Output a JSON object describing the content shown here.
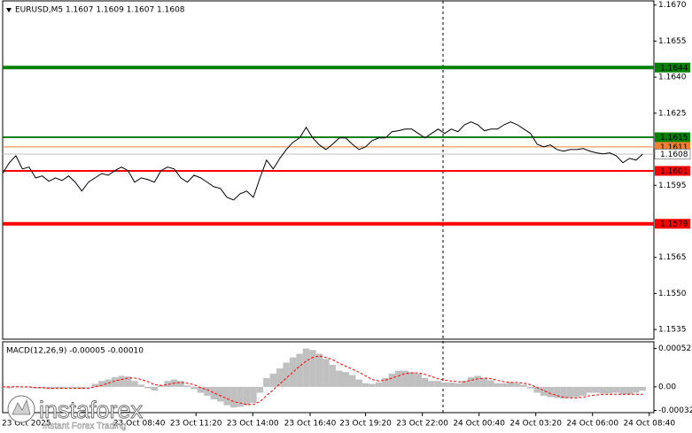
{
  "chart_data": [
    {
      "type": "line",
      "title": "EURUSD,M5  1.1607 1.1609 1.1607 1.1608",
      "color": "#000000",
      "values": [
        1.16,
        1.16044,
        1.16073,
        1.16018,
        1.16026,
        1.15981,
        1.15989,
        1.15967,
        1.15981,
        1.1597,
        1.15989,
        1.15963,
        1.15926,
        1.15963,
        1.15981,
        1.15999,
        1.15992,
        1.16011,
        1.16026,
        1.16011,
        1.15963,
        1.15981,
        1.15974,
        1.15963,
        1.16011,
        1.16026,
        1.16018,
        1.15981,
        1.15963,
        1.15992,
        1.15981,
        1.15963,
        1.15944,
        1.15937,
        1.159,
        1.15889,
        1.15915,
        1.15926,
        1.159,
        1.15981,
        1.16055,
        1.16018,
        1.16062,
        1.16099,
        1.16129,
        1.16147,
        1.16191,
        1.16147,
        1.16118,
        1.16099,
        1.16121,
        1.16147,
        1.16147,
        1.16121,
        1.16099,
        1.1611,
        1.16136,
        1.16147,
        1.16147,
        1.16173,
        1.16177,
        1.16184,
        1.16184,
        1.16166,
        1.16147,
        1.16166,
        1.16184,
        1.16166,
        1.16184,
        1.16173,
        1.16202,
        1.16214,
        1.16202,
        1.16177,
        1.16184,
        1.16184,
        1.16202,
        1.16214,
        1.16202,
        1.16184,
        1.16166,
        1.16121,
        1.1611,
        1.16118,
        1.16099,
        1.16092,
        1.16099,
        1.16099,
        1.16103,
        1.16092,
        1.16085,
        1.16081,
        1.16085,
        1.16073,
        1.16044,
        1.16062,
        1.16055,
        1.1608
      ],
      "xlim": [
        0,
        98.7
      ],
      "xticks": [
        {
          "value": 3.6,
          "label": "23 Oct 2025"
        },
        {
          "value": 20.7,
          "label": "23 Oct 08:40"
        },
        {
          "value": 29.3,
          "label": "23 Oct 11:20"
        },
        {
          "value": 37.9,
          "label": "23 Oct 14:00"
        },
        {
          "value": 46.6,
          "label": "23 Oct 16:40"
        },
        {
          "value": 55,
          "label": "23 Oct 19:20"
        },
        {
          "value": 63.6,
          "label": "23 Oct 22:00"
        },
        {
          "value": 72.2,
          "label": "24 Oct 00:40"
        },
        {
          "value": 80.8,
          "label": "24 Oct 03:20"
        },
        {
          "value": 89.4,
          "label": "24 Oct 06:00"
        },
        {
          "value": 98,
          "label": "24 Oct 08:40"
        }
      ],
      "ylim": [
        1.1531,
        1.1671
      ],
      "yticks": [
        {
          "value": 1.167,
          "label": "1.1670"
        },
        {
          "value": 1.1655,
          "label": "1.1655"
        },
        {
          "value": 1.164,
          "label": "1.1640"
        },
        {
          "value": 1.1625,
          "label": "1.1625"
        },
        {
          "value": 1.1595,
          "label": "1.1595"
        },
        {
          "value": 1.1565,
          "label": "1.1565"
        },
        {
          "value": 1.155,
          "label": "1.1550"
        },
        {
          "value": 1.1535,
          "label": "1.1535"
        }
      ],
      "levels": [
        {
          "value": 1.1644,
          "color": "#008000",
          "style": "thick"
        },
        {
          "value": 1.1615,
          "color": "#008000",
          "style": "medium"
        },
        {
          "value": 1.1611,
          "color": "#f08030",
          "style": "thin"
        },
        {
          "value": 1.1608,
          "color": "#c0c0c0",
          "style": "thin",
          "label_background": "#ffffff",
          "label_color": "#000000"
        },
        {
          "value": 1.1601,
          "color": "#ff0000",
          "style": "medium"
        },
        {
          "value": 1.1579,
          "color": "#ff0000",
          "style": "thick"
        }
      ]
    },
    {
      "type": "macd",
      "title": "MACD(12,26,9) -0.00005 -0.00010",
      "series": [
        {
          "style": "histogram",
          "color": "#c0c0c0",
          "values": [
            0,
            -2e-05,
            1e-05,
            0,
            -1e-05,
            -2e-05,
            -2e-05,
            -3e-05,
            -2e-05,
            -2e-05,
            -1e-05,
            -2e-05,
            -3e-05,
            -1e-05,
            4e-05,
            8e-05,
            0.0001,
            0.00013,
            0.00015,
            0.00014,
            8e-05,
            3e-05,
            -2e-05,
            -5e-05,
            2e-05,
            8e-05,
            0.0001,
            8e-05,
            2e-05,
            -3e-05,
            -8e-05,
            -0.00012,
            -0.00017,
            -0.0002,
            -0.00025,
            -0.00028,
            -0.00027,
            -0.00025,
            -0.00022,
            -8e-05,
            0.00012,
            0.00018,
            0.00025,
            0.00033,
            0.0004,
            0.00045,
            0.00052,
            0.0005,
            0.00045,
            0.00038,
            0.0003,
            0.00022,
            0.0002,
            0.00016,
            0.0001,
            5e-05,
            4e-05,
            6e-05,
            0.00012,
            0.00018,
            0.00022,
            0.00022,
            0.0002,
            0.00018,
            0.00012,
            8e-05,
            8e-05,
            6e-05,
            6e-05,
            5e-05,
            8e-05,
            0.00013,
            0.00015,
            0.00012,
            9e-05,
            5e-05,
            5e-05,
            6e-05,
            5e-05,
            3e-05,
            -2e-05,
            -8e-05,
            -0.00012,
            -0.00014,
            -0.00015,
            -0.00016,
            -0.00015,
            -0.00014,
            -0.00012,
            -8e-05,
            -8e-05,
            -9e-05,
            -9e-05,
            -8e-05,
            -0.0001,
            -0.0001,
            -8e-05,
            -5e-05
          ]
        },
        {
          "style": "dashed",
          "color": "#ff0000",
          "values": [
            0,
            0,
            0,
            0,
            0,
            -1e-05,
            -1e-05,
            -2e-05,
            -2e-05,
            -2e-05,
            -2e-05,
            -2e-05,
            -2e-05,
            -2e-05,
            0,
            2e-05,
            5e-05,
            8e-05,
            0.0001,
            0.00012,
            0.00012,
            0.0001,
            7e-05,
            3e-05,
            2e-05,
            3e-05,
            5e-05,
            6e-05,
            5e-05,
            3e-05,
            -1e-05,
            -4e-05,
            -8e-05,
            -0.00012,
            -0.00016,
            -0.0002,
            -0.00022,
            -0.00024,
            -0.00024,
            -0.0002,
            -0.00012,
            -4e-05,
            4e-05,
            0.00012,
            0.0002,
            0.00028,
            0.00035,
            0.0004,
            0.00042,
            0.0004,
            0.00037,
            0.00032,
            0.00028,
            0.00024,
            0.0002,
            0.00015,
            0.0001,
            8e-05,
            9e-05,
            0.00012,
            0.00015,
            0.00018,
            0.00019,
            0.00019,
            0.00017,
            0.00014,
            0.00011,
            9e-05,
            8e-05,
            7e-05,
            7e-05,
            9e-05,
            0.00011,
            0.00012,
            0.00011,
            9e-05,
            7e-05,
            6e-05,
            6e-05,
            5e-05,
            3e-05,
            -1e-05,
            -5e-05,
            -9e-05,
            -0.00012,
            -0.00014,
            -0.00015,
            -0.00015,
            -0.00014,
            -0.00012,
            -0.00011,
            -0.0001,
            -0.0001,
            -0.0001,
            -0.0001,
            -0.0001,
            -0.0001,
            -0.0001
          ]
        }
      ],
      "xlim": [
        0,
        98.7
      ],
      "ylim": [
        -0.00035,
        0.0006
      ],
      "yticks": [
        0.00052,
        {
          "value": 0,
          "label": "0.00"
        },
        -0.00032
      ]
    }
  ],
  "watermark": {
    "brand": "instaforex",
    "tagline": "Instant Forex Trading"
  }
}
